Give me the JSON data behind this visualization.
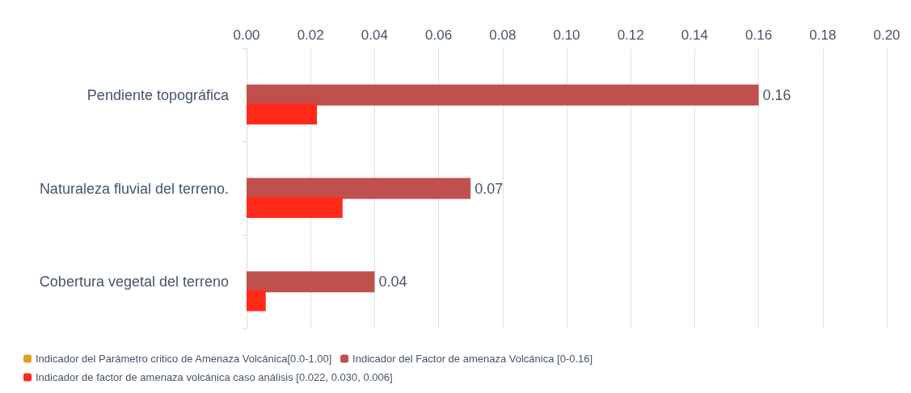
{
  "chart_data": {
    "type": "bar",
    "orientation": "horizontal",
    "categories": [
      "Pendiente topográfica",
      "Naturaleza fluvial del terreno.",
      "Cobertura vegetal del terreno"
    ],
    "series": [
      {
        "name": "Indicador del Parámetro critico de Amenaza Volcánica[0.0-1.00]",
        "color": "#e0a020",
        "values": [
          0,
          0,
          0
        ]
      },
      {
        "name": "Indicador del Factor de amenaza Volcánica [0-0.16]",
        "color": "#c0504d",
        "values": [
          0.16,
          0.07,
          0.04
        ],
        "value_labels": [
          "0.16",
          "0.07",
          "0.04"
        ]
      },
      {
        "name": "Indicador de factor de amenaza volcánica caso análisis [0.022, 0.030, 0.006]",
        "color": "#ff2a1a",
        "values": [
          0.022,
          0.03,
          0.006
        ]
      }
    ],
    "xlim": [
      0,
      0.2
    ],
    "xticks": [
      {
        "value": 0,
        "label": "0.00"
      },
      0.02,
      0.04,
      0.06,
      0.08,
      {
        "value": 0.1,
        "label": "0.10"
      },
      0.12,
      0.14,
      0.16,
      0.18,
      {
        "value": 0.2,
        "label": "0.20"
      }
    ],
    "grid": "x",
    "legend": "bottom"
  }
}
